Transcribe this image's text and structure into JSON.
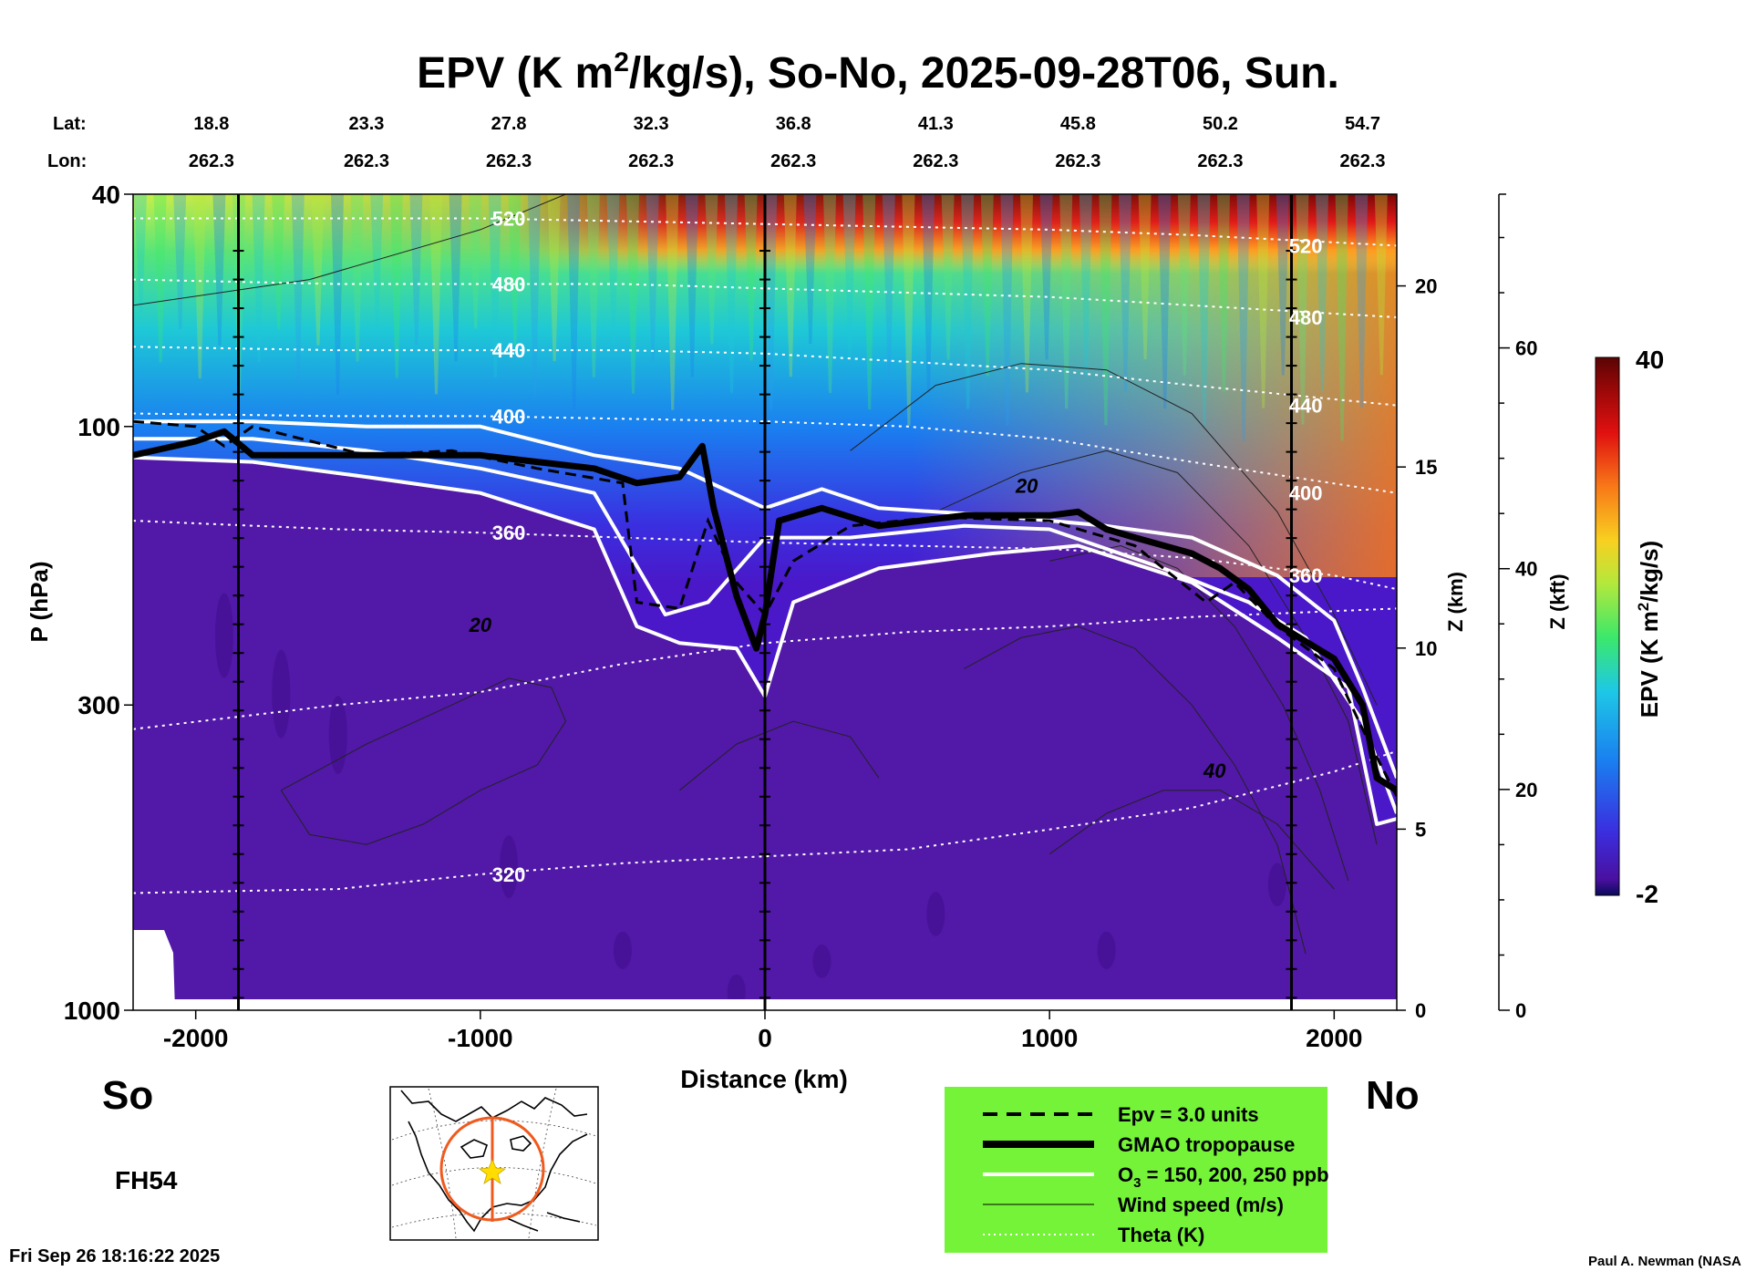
{
  "chart_data": {
    "type": "heatmap",
    "title": {
      "prefix": "EPV (K m",
      "sup": "2",
      "suffix": "/kg/s), So-No, 2025-09-28T06, Sun."
    },
    "header_rows": {
      "lat_label": "Lat:",
      "lon_label": "Lon:",
      "lat": [
        "18.8",
        "23.3",
        "27.8",
        "32.3",
        "36.8",
        "41.3",
        "45.8",
        "50.2",
        "54.7"
      ],
      "lon": [
        "262.3",
        "262.3",
        "262.3",
        "262.3",
        "262.3",
        "262.3",
        "262.3",
        "262.3",
        "262.3"
      ],
      "distance_km": [
        -1900,
        -1400,
        -900,
        -400,
        100,
        600,
        1100,
        1600,
        2100
      ]
    },
    "xlabel": "Distance (km)",
    "ylabel": "P (hPa)",
    "xlim": [
      -2220,
      2220
    ],
    "ylim_hPa": [
      1000,
      40
    ],
    "y_scale": "log",
    "x_ticks": [
      -2000,
      -1000,
      0,
      1000,
      2000
    ],
    "x_tick_labels": [
      "-2000",
      "-1000",
      "0",
      "1000",
      "2000"
    ],
    "y_ticks": [
      40,
      100,
      300,
      1000
    ],
    "y_tick_labels": [
      "40",
      "100",
      "300",
      "1000"
    ],
    "vertical_markers_km": [
      -1850,
      0,
      1850
    ],
    "right_axis_km": {
      "label": "Z (km)",
      "ticks": [
        0,
        5,
        10,
        15,
        20
      ],
      "tick_labels": [
        "0",
        "5",
        "10",
        "15",
        "20"
      ]
    },
    "right_axis_kft": {
      "label": "Z (kft)",
      "ticks": [
        0,
        20,
        40,
        60
      ],
      "tick_labels": [
        "0",
        "20",
        "40",
        "60"
      ]
    },
    "colorbar": {
      "label_prefix": "EPV (K m",
      "label_sup": "2",
      "label_suffix": "/kg/s)",
      "min": -2,
      "max": 40,
      "min_label": "-2",
      "max_label": "40"
    },
    "theta_isentropes": [
      {
        "K": 320,
        "label": "320",
        "p_hPa": [
          [
            -2220,
            630
          ],
          [
            -1500,
            620
          ],
          [
            -1000,
            585
          ],
          [
            -500,
            560
          ],
          [
            0,
            545
          ],
          [
            500,
            530
          ],
          [
            1000,
            490
          ],
          [
            1500,
            450
          ],
          [
            2000,
            390
          ],
          [
            2220,
            360
          ]
        ]
      },
      {
        "K": 340,
        "label": "",
        "p_hPa": [
          [
            -2220,
            330
          ],
          [
            -1500,
            300
          ],
          [
            -1000,
            285
          ],
          [
            -500,
            255
          ],
          [
            0,
            235
          ],
          [
            500,
            225
          ],
          [
            1000,
            220
          ],
          [
            1500,
            212
          ],
          [
            2220,
            205
          ]
        ]
      },
      {
        "K": 360,
        "label": "360",
        "p_hPa": [
          [
            -2220,
            145
          ],
          [
            -1500,
            150
          ],
          [
            -1000,
            152
          ],
          [
            -500,
            155
          ],
          [
            0,
            158
          ],
          [
            500,
            160
          ],
          [
            1000,
            162
          ],
          [
            1500,
            168
          ],
          [
            2000,
            180
          ],
          [
            2220,
            190
          ]
        ]
      },
      {
        "K": 400,
        "label": "400",
        "p_hPa": [
          [
            -2220,
            95
          ],
          [
            -1500,
            96
          ],
          [
            -1000,
            96
          ],
          [
            0,
            98
          ],
          [
            500,
            100
          ],
          [
            1000,
            105
          ],
          [
            1500,
            115
          ],
          [
            2220,
            130
          ]
        ]
      },
      {
        "K": 440,
        "label": "440",
        "p_hPa": [
          [
            -2220,
            73
          ],
          [
            -1500,
            74
          ],
          [
            -500,
            74
          ],
          [
            0,
            75
          ],
          [
            1000,
            80
          ],
          [
            1500,
            85
          ],
          [
            2220,
            92
          ]
        ]
      },
      {
        "K": 480,
        "label": "480",
        "p_hPa": [
          [
            -2220,
            56
          ],
          [
            -1500,
            57
          ],
          [
            -500,
            57
          ],
          [
            0,
            58
          ],
          [
            1000,
            60
          ],
          [
            1500,
            62
          ],
          [
            2220,
            65
          ]
        ]
      },
      {
        "K": 520,
        "label": "520",
        "p_hPa": [
          [
            -2220,
            44
          ],
          [
            -1000,
            44
          ],
          [
            0,
            45
          ],
          [
            1000,
            46
          ],
          [
            1500,
            47
          ],
          [
            2220,
            49
          ]
        ]
      }
    ],
    "tropopause_hPa": [
      [
        -2220,
        112
      ],
      [
        -2000,
        106
      ],
      [
        -1900,
        102
      ],
      [
        -1800,
        112
      ],
      [
        -1500,
        112
      ],
      [
        -1000,
        112
      ],
      [
        -800,
        115
      ],
      [
        -600,
        118
      ],
      [
        -450,
        125
      ],
      [
        -300,
        122
      ],
      [
        -220,
        108
      ],
      [
        -180,
        138
      ],
      [
        -100,
        195
      ],
      [
        -30,
        240
      ],
      [
        0,
        210
      ],
      [
        50,
        145
      ],
      [
        200,
        138
      ],
      [
        400,
        148
      ],
      [
        700,
        142
      ],
      [
        1000,
        142
      ],
      [
        1100,
        140
      ],
      [
        1200,
        150
      ],
      [
        1300,
        155
      ],
      [
        1500,
        165
      ],
      [
        1600,
        175
      ],
      [
        1700,
        190
      ],
      [
        1800,
        218
      ],
      [
        2000,
        250
      ],
      [
        2100,
        300
      ],
      [
        2150,
        400
      ],
      [
        2220,
        420
      ]
    ],
    "epv_3pvu_hPa": [
      [
        -2220,
        98
      ],
      [
        -2000,
        100
      ],
      [
        -1900,
        108
      ],
      [
        -1800,
        100
      ],
      [
        -1400,
        112
      ],
      [
        -1100,
        110
      ],
      [
        -800,
        118
      ],
      [
        -500,
        125
      ],
      [
        -450,
        200
      ],
      [
        -300,
        205
      ],
      [
        -200,
        145
      ],
      [
        -100,
        185
      ],
      [
        0,
        210
      ],
      [
        100,
        170
      ],
      [
        300,
        148
      ],
      [
        600,
        143
      ],
      [
        1000,
        145
      ],
      [
        1300,
        160
      ],
      [
        1550,
        200
      ],
      [
        1650,
        185
      ],
      [
        1800,
        220
      ],
      [
        2000,
        260
      ],
      [
        2100,
        330
      ],
      [
        2220,
        430
      ]
    ],
    "ozone_contours_hPa": [
      {
        "ppb": 150,
        "p_hPa": [
          [
            -2220,
            98
          ],
          [
            -1800,
            98
          ],
          [
            -1400,
            100
          ],
          [
            -1000,
            100
          ],
          [
            -600,
            112
          ],
          [
            -300,
            118
          ],
          [
            0,
            138
          ],
          [
            200,
            128
          ],
          [
            400,
            138
          ],
          [
            800,
            142
          ],
          [
            1200,
            148
          ],
          [
            1500,
            155
          ],
          [
            1800,
            180
          ],
          [
            2000,
            215
          ],
          [
            2100,
            280
          ],
          [
            2220,
            400
          ]
        ]
      },
      {
        "ppb": 200,
        "p_hPa": [
          [
            -2220,
            105
          ],
          [
            -1800,
            105
          ],
          [
            -1400,
            110
          ],
          [
            -1000,
            118
          ],
          [
            -600,
            130
          ],
          [
            -350,
            210
          ],
          [
            -200,
            200
          ],
          [
            0,
            155
          ],
          [
            300,
            155
          ],
          [
            700,
            148
          ],
          [
            1000,
            150
          ],
          [
            1400,
            175
          ],
          [
            1700,
            200
          ],
          [
            1900,
            230
          ],
          [
            2100,
            320
          ],
          [
            2220,
            460
          ]
        ]
      },
      {
        "ppb": 250,
        "p_hPa": [
          [
            -2220,
            113
          ],
          [
            -1800,
            115
          ],
          [
            -1400,
            122
          ],
          [
            -1000,
            130
          ],
          [
            -600,
            150
          ],
          [
            -450,
            220
          ],
          [
            -300,
            235
          ],
          [
            -100,
            240
          ],
          [
            0,
            290
          ],
          [
            100,
            200
          ],
          [
            400,
            175
          ],
          [
            800,
            165
          ],
          [
            1100,
            160
          ],
          [
            1500,
            185
          ],
          [
            1800,
            230
          ],
          [
            2050,
            280
          ],
          [
            2150,
            480
          ],
          [
            2220,
            470
          ]
        ]
      }
    ],
    "wind_speed_labels": [
      {
        "label": "20",
        "x": -1000,
        "p_hPa": 225
      },
      {
        "label": "20",
        "x": 920,
        "p_hPa": 130
      },
      {
        "label": "40",
        "x": 1580,
        "p_hPa": 400
      }
    ],
    "legend": [
      {
        "style": "dashed",
        "label": "Epv = 3.0 units"
      },
      {
        "style": "thick",
        "label": "GMAO tropopause"
      },
      {
        "style": "white",
        "label_prefix": "O",
        "label_sub": "3",
        "label_suffix": " = 150, 200, 250 ppb"
      },
      {
        "style": "thin",
        "label": "Wind speed (m/s)"
      },
      {
        "style": "dotted",
        "label": "Theta (K)"
      }
    ],
    "legend_position": "bottom-right",
    "grid": false
  },
  "labels": {
    "south": "So",
    "north": "No",
    "forecast_hour": "FH54",
    "timestamp": "Fri Sep 26 18:16:22 2025",
    "credit": "Paul A. Newman (NASA"
  },
  "colors": {
    "background": "#ffffff",
    "troposphere": "#5218a8",
    "legend_bg": "#74f338",
    "map_track": "#f05a1e",
    "map_marker": "#ffdd00",
    "colorbar_stops": [
      "#0a0a5a",
      "#4a10a0",
      "#3a2fe0",
      "#1a7ff0",
      "#1ec8e6",
      "#3ce86a",
      "#b4e83c",
      "#f8d020",
      "#f87818",
      "#e01010",
      "#9a0808",
      "#5a0404"
    ]
  }
}
